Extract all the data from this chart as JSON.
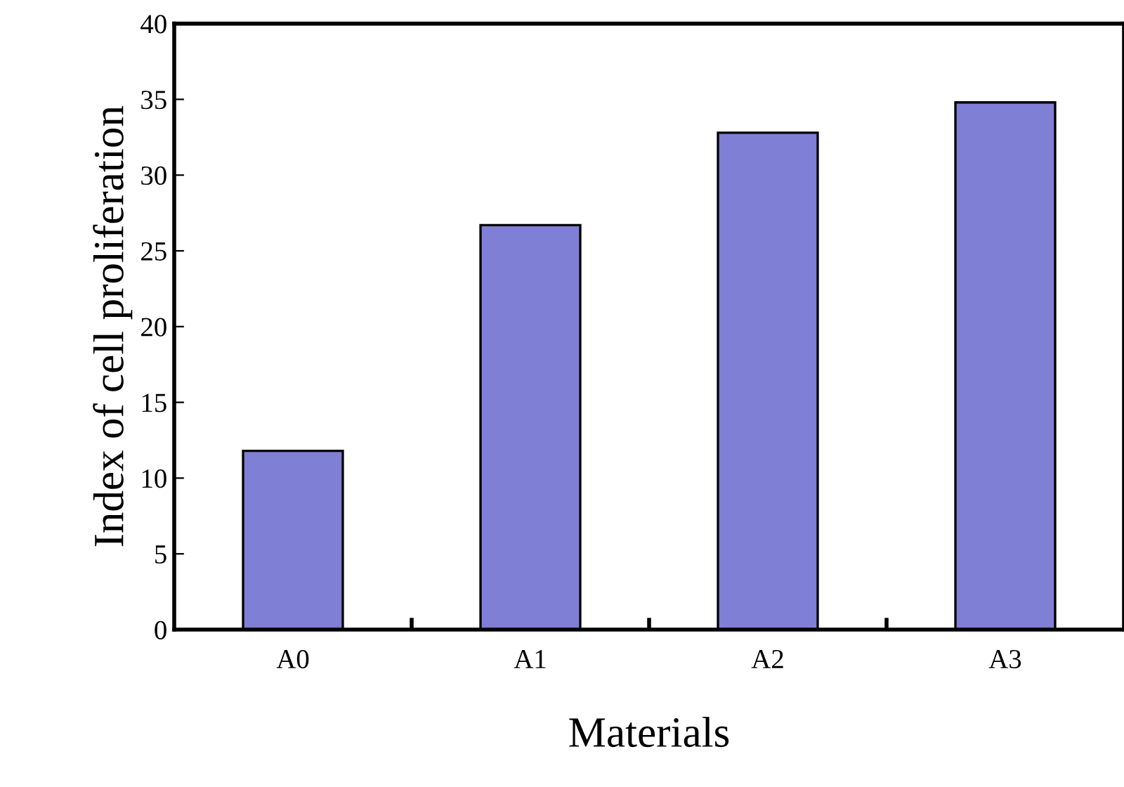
{
  "chart_data": {
    "type": "bar",
    "xlabel": "Materials",
    "ylabel": "Index of cell proliferation",
    "categories": [
      "A0",
      "A1",
      "A2",
      "A3"
    ],
    "values": [
      11.8,
      26.7,
      32.8,
      34.8
    ],
    "color": "#7f7fd6",
    "ylim": [
      0,
      40
    ],
    "yticks": [
      0,
      5,
      10,
      15,
      20,
      25,
      30,
      35,
      40
    ],
    "grid": false
  }
}
